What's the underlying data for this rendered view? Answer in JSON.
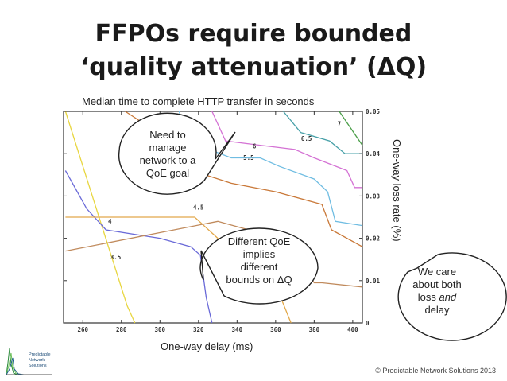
{
  "title_line1": "FFPOs require bounded",
  "title_line2": "‘quality attenuation’ (ΔQ)",
  "caption": "Median time to complete HTTP transfer in seconds",
  "x_axis_label": "One-way delay (ms)",
  "y_axis_label": "One-way loss rate (%)",
  "callouts": {
    "qoe_goal": [
      "Need to",
      "manage",
      "network to a",
      "QoE goal"
    ],
    "different_bounds": [
      "Different QoE",
      "implies",
      "different",
      "bounds on ΔQ"
    ],
    "loss_delay": [
      "We care",
      "about both",
      "loss ",
      "and",
      "delay"
    ]
  },
  "copyright": "© Predictable Network Solutions 2013",
  "logo_text": [
    "Predictable",
    "Network",
    "Solutions"
  ],
  "chart_data": {
    "type": "line",
    "subtype": "contour",
    "x_ticks": [
      260,
      280,
      300,
      320,
      340,
      360,
      380,
      400
    ],
    "y_ticks": [
      0,
      0.01,
      0.02,
      0.03,
      0.04,
      0.05
    ],
    "xlim": [
      250,
      405
    ],
    "ylim": [
      0,
      0.05
    ],
    "contour_labels": [
      "3.5",
      "4",
      "4.5",
      "5.5",
      "6",
      "6.5",
      "7"
    ],
    "series": [
      {
        "color": "#e8d640",
        "points": [
          [
            251,
            0.05
          ],
          [
            283,
            0.004
          ],
          [
            287,
            0.0
          ]
        ]
      },
      {
        "color": "#6a6ad8",
        "points": [
          [
            251,
            0.036
          ],
          [
            262,
            0.027
          ],
          [
            272,
            0.022
          ],
          [
            300,
            0.02
          ],
          [
            316,
            0.018
          ],
          [
            321,
            0.016
          ],
          [
            324,
            0.006
          ],
          [
            327,
            0.0
          ]
        ]
      },
      {
        "color": "#e2a84a",
        "points": [
          [
            251,
            0.025
          ],
          [
            300,
            0.025
          ],
          [
            318,
            0.025
          ],
          [
            330,
            0.02
          ],
          [
            344,
            0.013
          ],
          [
            350,
            0.013
          ],
          [
            360,
            0.009
          ],
          [
            368,
            0.0
          ]
        ]
      },
      {
        "color": "#c08a5c",
        "points": [
          [
            251,
            0.017
          ],
          [
            330,
            0.024
          ],
          [
            346,
            0.022
          ],
          [
            358,
            0.018
          ],
          [
            370,
            0.016
          ],
          [
            380,
            0.0095
          ],
          [
            384,
            0.0095
          ],
          [
            405,
            0.0085
          ]
        ]
      },
      {
        "color": "#c97838",
        "points": [
          [
            282,
            0.05
          ],
          [
            302,
            0.044
          ],
          [
            306,
            0.04
          ],
          [
            310,
            0.037
          ],
          [
            337,
            0.033
          ],
          [
            360,
            0.031
          ],
          [
            384,
            0.028
          ],
          [
            389,
            0.022
          ],
          [
            405,
            0.018
          ]
        ]
      },
      {
        "color": "#70bde2",
        "points": [
          [
            310,
            0.05
          ],
          [
            314,
            0.043
          ],
          [
            337,
            0.039
          ],
          [
            352,
            0.039
          ],
          [
            362,
            0.037
          ],
          [
            380,
            0.034
          ],
          [
            387,
            0.031
          ],
          [
            391,
            0.024
          ],
          [
            405,
            0.023
          ]
        ]
      },
      {
        "color": "#d472d4",
        "points": [
          [
            327,
            0.05
          ],
          [
            334,
            0.043
          ],
          [
            352,
            0.042
          ],
          [
            370,
            0.041
          ],
          [
            380,
            0.039
          ],
          [
            397,
            0.036
          ],
          [
            401,
            0.032
          ],
          [
            405,
            0.032
          ]
        ]
      },
      {
        "color": "#47a0a8",
        "points": [
          [
            364,
            0.05
          ],
          [
            373,
            0.045
          ],
          [
            388,
            0.043
          ],
          [
            396,
            0.04
          ],
          [
            405,
            0.04
          ]
        ]
      },
      {
        "color": "#4a9e48",
        "points": [
          [
            393,
            0.05
          ],
          [
            405,
            0.042
          ]
        ]
      }
    ]
  }
}
